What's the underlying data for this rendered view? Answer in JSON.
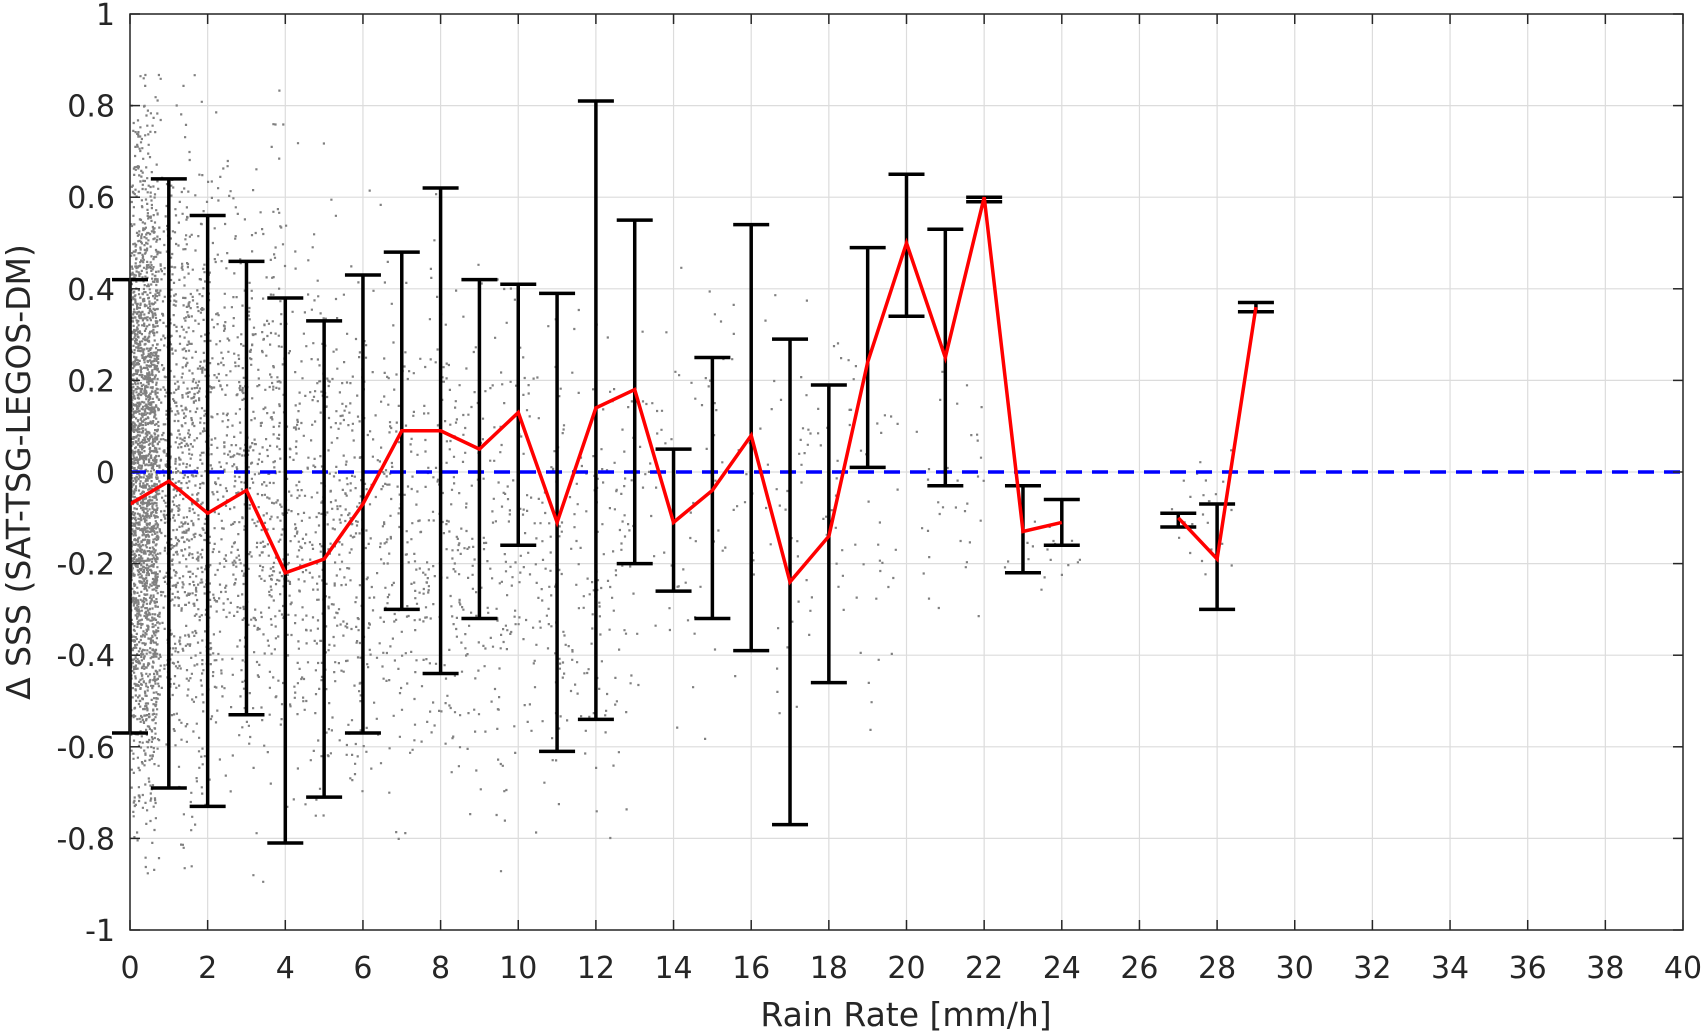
{
  "chart_data": {
    "type": "scatter",
    "xlabel": "Rain Rate [mm/h]",
    "ylabel": "Δ SSS (SAT-TSG-LEGOS-DM)",
    "xlim": [
      0,
      40
    ],
    "ylim": [
      -1,
      1
    ],
    "grid": true,
    "x_ticks": [
      0,
      2,
      4,
      6,
      8,
      10,
      12,
      14,
      16,
      18,
      20,
      22,
      24,
      26,
      28,
      30,
      32,
      34,
      36,
      38,
      40
    ],
    "y_ticks": [
      -1,
      -0.8,
      -0.6,
      -0.4,
      -0.2,
      0,
      0.2,
      0.4,
      0.6,
      0.8,
      1
    ],
    "y_tick_labels": [
      "-1",
      "-0.8",
      "-0.6",
      "-0.4",
      "-0.2",
      "0",
      "0.2",
      "0.4",
      "0.6",
      "0.8",
      "1"
    ],
    "reference_line": {
      "y": 0,
      "style": "dashed",
      "color": "#0000ff"
    },
    "mean_line": {
      "color": "#ff0000",
      "segments": [
        {
          "x": [
            0,
            1,
            2,
            3,
            4,
            5,
            6,
            7,
            8,
            9,
            10,
            11,
            12,
            13,
            14,
            15,
            16,
            17,
            18,
            19,
            20,
            21,
            22,
            23,
            24
          ],
          "y": [
            -0.07,
            -0.02,
            -0.09,
            -0.04,
            -0.22,
            -0.19,
            -0.07,
            0.09,
            0.09,
            0.05,
            0.13,
            -0.11,
            0.14,
            0.18,
            -0.11,
            -0.04,
            0.08,
            -0.24,
            -0.14,
            0.24,
            0.5,
            0.25,
            0.6,
            -0.13,
            -0.11
          ]
        },
        {
          "x": [
            27,
            28,
            29
          ],
          "y": [
            -0.1,
            -0.19,
            0.36
          ]
        }
      ]
    },
    "error_bars": {
      "color": "#000000",
      "x": [
        0,
        1,
        2,
        3,
        4,
        5,
        6,
        7,
        8,
        9,
        10,
        11,
        12,
        13,
        14,
        15,
        16,
        17,
        18,
        19,
        20,
        21,
        22,
        23,
        24,
        27,
        28,
        29
      ],
      "upper": [
        0.42,
        0.64,
        0.56,
        0.46,
        0.38,
        0.33,
        0.43,
        0.48,
        0.62,
        0.42,
        0.41,
        0.39,
        0.81,
        0.55,
        0.05,
        0.25,
        0.54,
        0.29,
        0.19,
        0.49,
        0.65,
        0.53,
        0.6,
        -0.03,
        -0.06,
        -0.09,
        -0.07,
        0.37
      ],
      "lower": [
        -0.57,
        -0.69,
        -0.73,
        -0.53,
        -0.81,
        -0.71,
        -0.57,
        -0.3,
        -0.44,
        -0.32,
        -0.16,
        -0.61,
        -0.54,
        -0.2,
        -0.26,
        -0.32,
        -0.39,
        -0.77,
        -0.46,
        0.01,
        0.34,
        -0.03,
        0.59,
        -0.22,
        -0.16,
        -0.12,
        -0.3,
        0.35
      ]
    },
    "scatter_points": {
      "color": "#808080",
      "clusters": [
        {
          "x": [
            0,
            0.7
          ],
          "y": [
            -1,
            1
          ],
          "n": 2200
        },
        {
          "x": [
            0.7,
            2
          ],
          "y": [
            -1,
            1
          ],
          "n": 900
        },
        {
          "x": [
            2,
            4
          ],
          "y": [
            -0.95,
            0.95
          ],
          "n": 650
        },
        {
          "x": [
            4,
            6
          ],
          "y": [
            -0.95,
            0.75
          ],
          "n": 450
        },
        {
          "x": [
            6,
            8.5
          ],
          "y": [
            -0.95,
            0.7
          ],
          "n": 350
        },
        {
          "x": [
            8.5,
            11
          ],
          "y": [
            -0.95,
            0.6
          ],
          "n": 250
        },
        {
          "x": [
            11,
            13
          ],
          "y": [
            -0.95,
            0.5
          ],
          "n": 160
        },
        {
          "x": [
            13,
            17.5
          ],
          "y": [
            -0.8,
            0.7
          ],
          "n": 120
        },
        {
          "x": [
            17.5,
            22
          ],
          "y": [
            -0.6,
            0.55
          ],
          "n": 90
        },
        {
          "x": [
            22.5,
            24.5
          ],
          "y": [
            -0.3,
            -0.05
          ],
          "n": 20
        },
        {
          "x": [
            26.8,
            28.4
          ],
          "y": [
            -0.3,
            0.1
          ],
          "n": 25
        }
      ]
    }
  }
}
